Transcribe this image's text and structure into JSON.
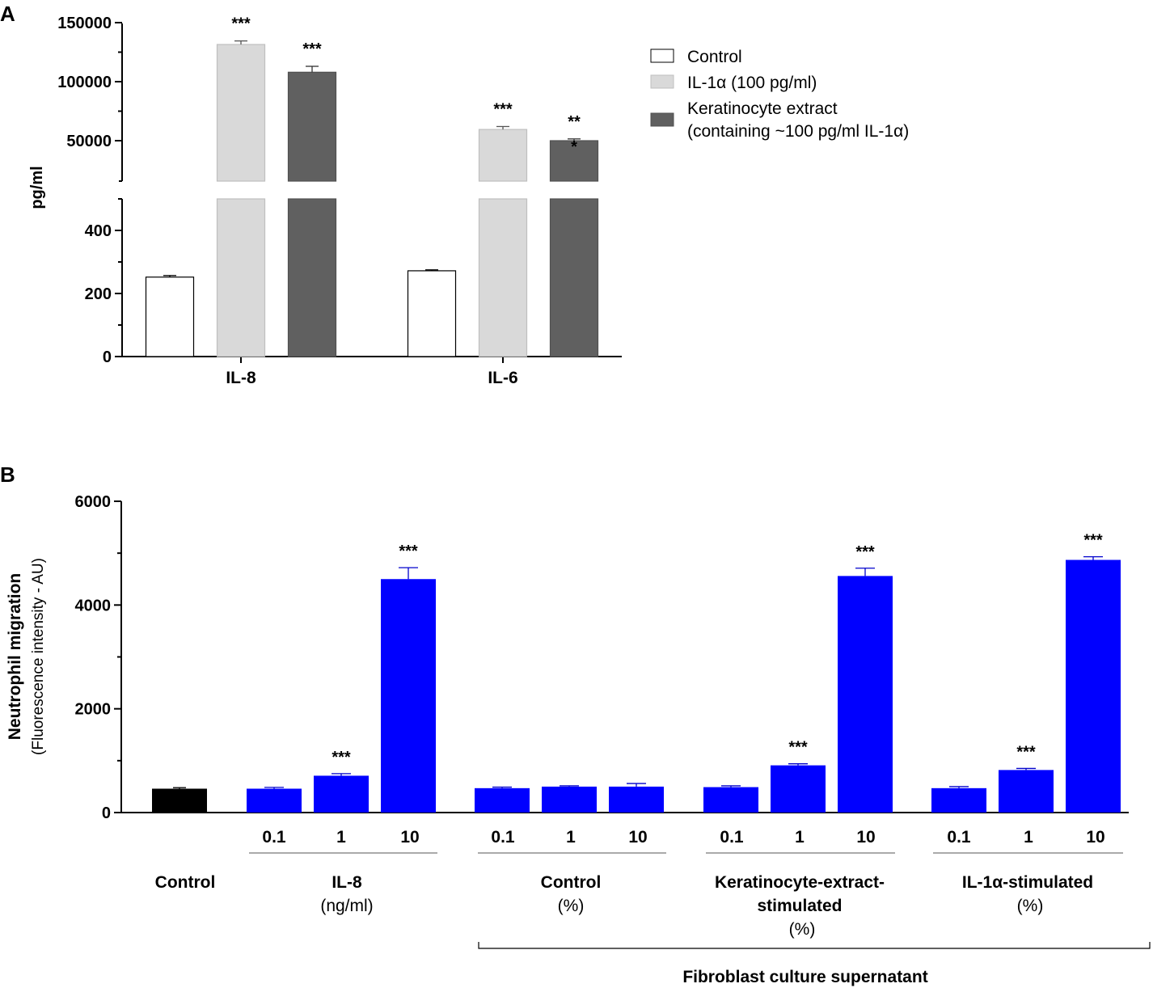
{
  "chart_data": [
    {
      "panel_label": "A",
      "type": "bar",
      "broken_axis": true,
      "ylabel": "pg/ml",
      "upper_ticks": [
        "50000",
        "100000",
        "150000"
      ],
      "lower_ticks": [
        "0",
        "200",
        "400"
      ],
      "categories": [
        "IL-8",
        "IL-6"
      ],
      "legend": [
        {
          "label": "Control"
        },
        {
          "label": "IL-1α (100 pg/ml)"
        },
        {
          "label": "Keratinocyte extract"
        },
        {
          "label": "(containing ~100 pg/ml IL-1α)"
        }
      ],
      "series": [
        {
          "name": "Control",
          "color": "#ffffff",
          "values": [
            252,
            272
          ],
          "errors": [
            5,
            3
          ],
          "sig": [
            "",
            ""
          ]
        },
        {
          "name": "IL-1α (100 pg/ml)",
          "color": "#d9d9d9",
          "values": [
            131500,
            59500
          ],
          "errors": [
            3000,
            2500
          ],
          "sig": [
            "***",
            "***"
          ]
        },
        {
          "name": "Keratinocyte extract (containing ~100 pg/ml IL-1α)",
          "color": "#606060",
          "values": [
            108000,
            50000
          ],
          "errors": [
            5000,
            1500
          ],
          "sig": [
            "***",
            "**"
          ],
          "extra_sig": [
            "",
            "*"
          ]
        }
      ]
    },
    {
      "panel_label": "B",
      "type": "bar",
      "ylabel": "Neutrophil migration",
      "ylabel_sub": "(Fluorescence intensity - AU)",
      "ylim": [
        0,
        6000
      ],
      "yticks": [
        "0",
        "2000",
        "4000",
        "6000"
      ],
      "control_bar": {
        "label": "Control",
        "value": 460,
        "error": 20,
        "color": "#000000"
      },
      "groups": [
        {
          "label": "IL-8",
          "sublabel": "(ng/ml)",
          "doses": [
            "0.1",
            "1",
            "10"
          ],
          "values": [
            460,
            710,
            4500
          ],
          "errors": [
            25,
            40,
            220
          ],
          "sig": [
            "",
            "***",
            "***"
          ]
        },
        {
          "label": "Control",
          "sublabel": "(%)",
          "doses": [
            "0.1",
            "1",
            "10"
          ],
          "values": [
            470,
            500,
            500
          ],
          "errors": [
            20,
            15,
            60
          ],
          "sig": [
            "",
            "",
            ""
          ]
        },
        {
          "label": "Keratinocyte-extract-",
          "label2": "stimulated",
          "sublabel": "(%)",
          "doses": [
            "0.1",
            "1",
            "10"
          ],
          "values": [
            490,
            910,
            4560
          ],
          "errors": [
            25,
            30,
            150
          ],
          "sig": [
            "",
            "***",
            "***"
          ]
        },
        {
          "label": "IL-1α-stimulated",
          "sublabel": "(%)",
          "doses": [
            "0.1",
            "1",
            "10"
          ],
          "values": [
            470,
            820,
            4870
          ],
          "errors": [
            30,
            30,
            60
          ],
          "sig": [
            "",
            "***",
            "***"
          ]
        }
      ],
      "bar_color": "#0000ff",
      "bracket_label": "Fibroblast culture supernatant"
    }
  ]
}
